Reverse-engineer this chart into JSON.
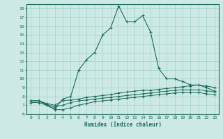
{
  "title": "",
  "xlabel": "Humidex (Indice chaleur)",
  "ylabel": "",
  "bg_color": "#cce9e5",
  "grid_color": "#aad4cf",
  "line_color": "#1a6b5a",
  "xlim": [
    -0.5,
    23.5
  ],
  "ylim": [
    6,
    18.5
  ],
  "xticks": [
    0,
    1,
    2,
    3,
    4,
    5,
    6,
    7,
    8,
    9,
    10,
    11,
    12,
    13,
    14,
    15,
    16,
    17,
    18,
    19,
    20,
    21,
    22,
    23
  ],
  "yticks": [
    6,
    7,
    8,
    9,
    10,
    11,
    12,
    13,
    14,
    15,
    16,
    17,
    18
  ],
  "series1_x": [
    0,
    1,
    2,
    3,
    4,
    5,
    6,
    7,
    8,
    9,
    10,
    11,
    12,
    13,
    14,
    15,
    16,
    17,
    18,
    19,
    20,
    21,
    22,
    23
  ],
  "series1_y": [
    7.5,
    7.5,
    7.0,
    6.6,
    7.7,
    8.0,
    11.0,
    12.2,
    13.0,
    15.0,
    15.8,
    18.3,
    16.5,
    16.5,
    17.2,
    15.3,
    11.2,
    10.0,
    10.0,
    9.7,
    9.3,
    9.3,
    9.0,
    8.6
  ],
  "series2_x": [
    0,
    1,
    2,
    3,
    4,
    5,
    6,
    7,
    8,
    9,
    10,
    11,
    12,
    13,
    14,
    15,
    16,
    17,
    18,
    19,
    20,
    21,
    22,
    23
  ],
  "series2_y": [
    7.5,
    7.5,
    7.2,
    7.0,
    7.5,
    7.6,
    7.7,
    7.9,
    8.0,
    8.1,
    8.2,
    8.4,
    8.5,
    8.6,
    8.7,
    8.7,
    8.8,
    8.9,
    9.0,
    9.1,
    9.2,
    9.3,
    9.2,
    9.0
  ],
  "series3_x": [
    0,
    1,
    2,
    3,
    4,
    5,
    6,
    7,
    8,
    9,
    10,
    11,
    12,
    13,
    14,
    15,
    16,
    17,
    18,
    19,
    20,
    21,
    22,
    23
  ],
  "series3_y": [
    7.5,
    7.5,
    7.1,
    6.8,
    7.0,
    7.3,
    7.5,
    7.6,
    7.7,
    7.8,
    7.9,
    8.0,
    8.1,
    8.2,
    8.3,
    8.4,
    8.5,
    8.6,
    8.7,
    8.75,
    8.75,
    8.75,
    8.65,
    8.5
  ],
  "series4_x": [
    0,
    1,
    2,
    3,
    4,
    5,
    6,
    7,
    8,
    9,
    10,
    11,
    12,
    13,
    14,
    15,
    16,
    17,
    18,
    19,
    20,
    21,
    22,
    23
  ],
  "series4_y": [
    7.3,
    7.3,
    7.0,
    6.5,
    6.5,
    6.7,
    7.0,
    7.2,
    7.4,
    7.5,
    7.6,
    7.7,
    7.8,
    7.9,
    8.0,
    8.1,
    8.2,
    8.3,
    8.4,
    8.45,
    8.45,
    8.45,
    8.3,
    8.2
  ]
}
